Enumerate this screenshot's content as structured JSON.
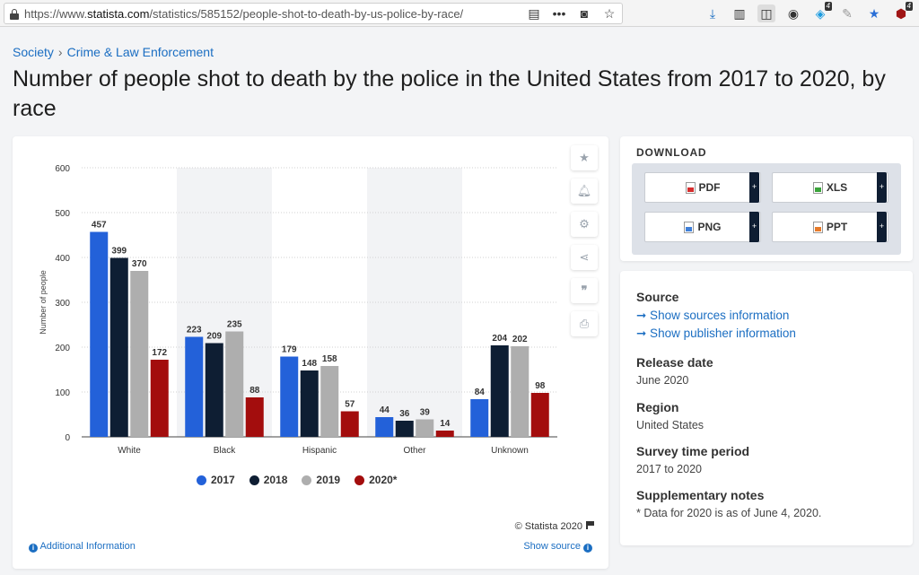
{
  "browser": {
    "url_prefix": "https://www.",
    "url_domain": "statista.com",
    "url_path": "/statistics/585152/people-shot-to-death-by-us-police-by-race/",
    "badge_a": "4",
    "badge_b": "4"
  },
  "breadcrumb": [
    "Society",
    "Crime & Law Enforcement"
  ],
  "page_title": "Number of people shot to death by the police in the United States from 2017 to 2020, by race",
  "chart": {
    "legend": [
      "2017",
      "2018",
      "2019",
      "2020*"
    ],
    "copyright": "© Statista 2020",
    "additional_info": "Additional Information",
    "show_source": "Show source"
  },
  "chart_data": {
    "type": "bar",
    "title": "",
    "categories": [
      "White",
      "Black",
      "Hispanic",
      "Other",
      "Unknown"
    ],
    "series": [
      {
        "name": "2017",
        "color": "#2361d9",
        "values": [
          457,
          223,
          179,
          44,
          84
        ]
      },
      {
        "name": "2018",
        "color": "#0e1e33",
        "values": [
          399,
          209,
          148,
          36,
          204
        ]
      },
      {
        "name": "2019",
        "color": "#aeaeae",
        "values": [
          370,
          235,
          158,
          39,
          202
        ]
      },
      {
        "name": "2020*",
        "color": "#a30d0d",
        "values": [
          172,
          88,
          57,
          14,
          98
        ]
      }
    ],
    "xlabel": "",
    "ylabel": "Number of people",
    "ylim": [
      0,
      600
    ],
    "yticks": [
      0,
      100,
      200,
      300,
      400,
      500,
      600
    ],
    "grid": true,
    "legend_position": "bottom"
  },
  "download": {
    "title": "DOWNLOAD",
    "buttons": [
      "PDF",
      "XLS",
      "PNG",
      "PPT"
    ],
    "plus": "+"
  },
  "info": {
    "source_label": "Source",
    "show_sources": "➞ Show sources information",
    "show_publisher": "➞ Show publisher information",
    "release_label": "Release date",
    "release_value": "June 2020",
    "region_label": "Region",
    "region_value": "United States",
    "survey_label": "Survey time period",
    "survey_value": "2017 to 2020",
    "notes_label": "Supplementary notes",
    "notes_value": "* Data for 2020 is as of June 4, 2020."
  }
}
